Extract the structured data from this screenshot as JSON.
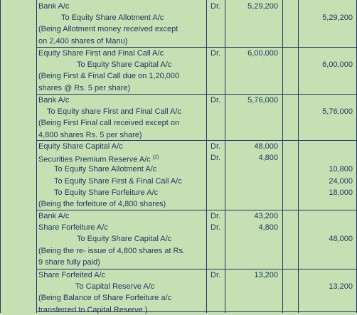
{
  "entries": [
    {
      "lines": [
        {
          "text": "Bank A/c",
          "indent": 0,
          "dr": "Dr.",
          "debit": "5,29,200",
          "credit": ""
        },
        {
          "text": "To Equity Share Allotment A/c",
          "indent": 1,
          "dr": "",
          "debit": "",
          "credit": "5,29,200"
        },
        {
          "text": "(Being Allotment money received except",
          "indent": 0,
          "dr": "",
          "debit": "",
          "credit": ""
        },
        {
          "text": "on 2,400 shares of Manu)",
          "indent": 0,
          "dr": "",
          "debit": "",
          "credit": ""
        }
      ]
    },
    {
      "lines": [
        {
          "text": "Equity Share First and Final Call A/c",
          "indent": 0,
          "dr": "Dr.",
          "debit": "6,00,000",
          "credit": ""
        },
        {
          "text": "To Equity Share Capital A/c",
          "indent": 2,
          "dr": "",
          "debit": "",
          "credit": "6,00,000"
        },
        {
          "text": "(Being First & Final Call due on 1,20,000",
          "indent": 0,
          "dr": "",
          "debit": "",
          "credit": ""
        },
        {
          "text": "shares @ Rs. 5 per share)",
          "indent": 0,
          "dr": "",
          "debit": "",
          "credit": ""
        }
      ]
    },
    {
      "lines": [
        {
          "text": "Bank A/c",
          "indent": 0,
          "dr": "Dr.",
          "debit": "5,76,000",
          "credit": ""
        },
        {
          "text": "To Equity share First and Final Call A/c",
          "indent": 3,
          "dr": "",
          "debit": "",
          "credit": "5,76,000"
        },
        {
          "text": "(Being First  Final call received except on",
          "indent": 0,
          "dr": "",
          "debit": "",
          "credit": ""
        },
        {
          "text": "4,800 shares  Rs. 5 per share)",
          "indent": 0,
          "dr": "",
          "debit": "",
          "credit": ""
        }
      ]
    },
    {
      "lines": [
        {
          "text": "Equity Share Capital A/c",
          "indent": 0,
          "dr": "Dr.",
          "debit": "48,000",
          "credit": ""
        },
        {
          "text": "Securities Premium Reserve A/c",
          "indent": 0,
          "sup": "(2)",
          "dr": "Dr.",
          "debit": "4,800",
          "credit": ""
        },
        {
          "text": "To Equity Share Allotment A/c",
          "indent": 4,
          "dr": "",
          "debit": "",
          "credit": "10,800"
        },
        {
          "text": "To Equity Share First & Final Call A/c",
          "indent": 4,
          "dr": "",
          "debit": "",
          "credit": "24,000"
        },
        {
          "text": "To Equity Share Forfeiture A/c",
          "indent": 4,
          "dr": "",
          "debit": "",
          "credit": "18,000"
        },
        {
          "text": "(Being the forfeiture of 4,800 shares)",
          "indent": 0,
          "dr": "",
          "debit": "",
          "credit": ""
        }
      ]
    },
    {
      "lines": [
        {
          "text": "Bank A/c",
          "indent": 0,
          "dr": "Dr.",
          "debit": "43,200",
          "credit": ""
        },
        {
          "text": "Share Forfeiture A/c",
          "indent": 0,
          "dr": "Dr.",
          "debit": "4,800",
          "credit": ""
        },
        {
          "text": "To Equity Share Capital A/c",
          "indent": 2,
          "dr": "",
          "debit": "",
          "credit": "48,000"
        },
        {
          "text": "(Being the re- issue of 4,800 shares at Rs.",
          "indent": 0,
          "dr": "",
          "debit": "",
          "credit": ""
        },
        {
          "text": "9 share fully paid)",
          "indent": 0,
          "dr": "",
          "debit": "",
          "credit": ""
        }
      ]
    },
    {
      "lines": [
        {
          "text": "Share Forfeited A/c",
          "indent": 0,
          "dr": "Dr.",
          "debit": "13,200",
          "credit": ""
        },
        {
          "text": "To Capital Reserve A/c",
          "indent": 5,
          "dr": "",
          "debit": "",
          "credit": "13,200"
        },
        {
          "text": "(Being Balance of Share Forfeiture a/c",
          "indent": 0,
          "dr": "",
          "debit": "",
          "credit": ""
        },
        {
          "text": "transferred to Capital Reserve )",
          "indent": 0,
          "dr": "",
          "debit": "",
          "credit": ""
        }
      ]
    }
  ]
}
